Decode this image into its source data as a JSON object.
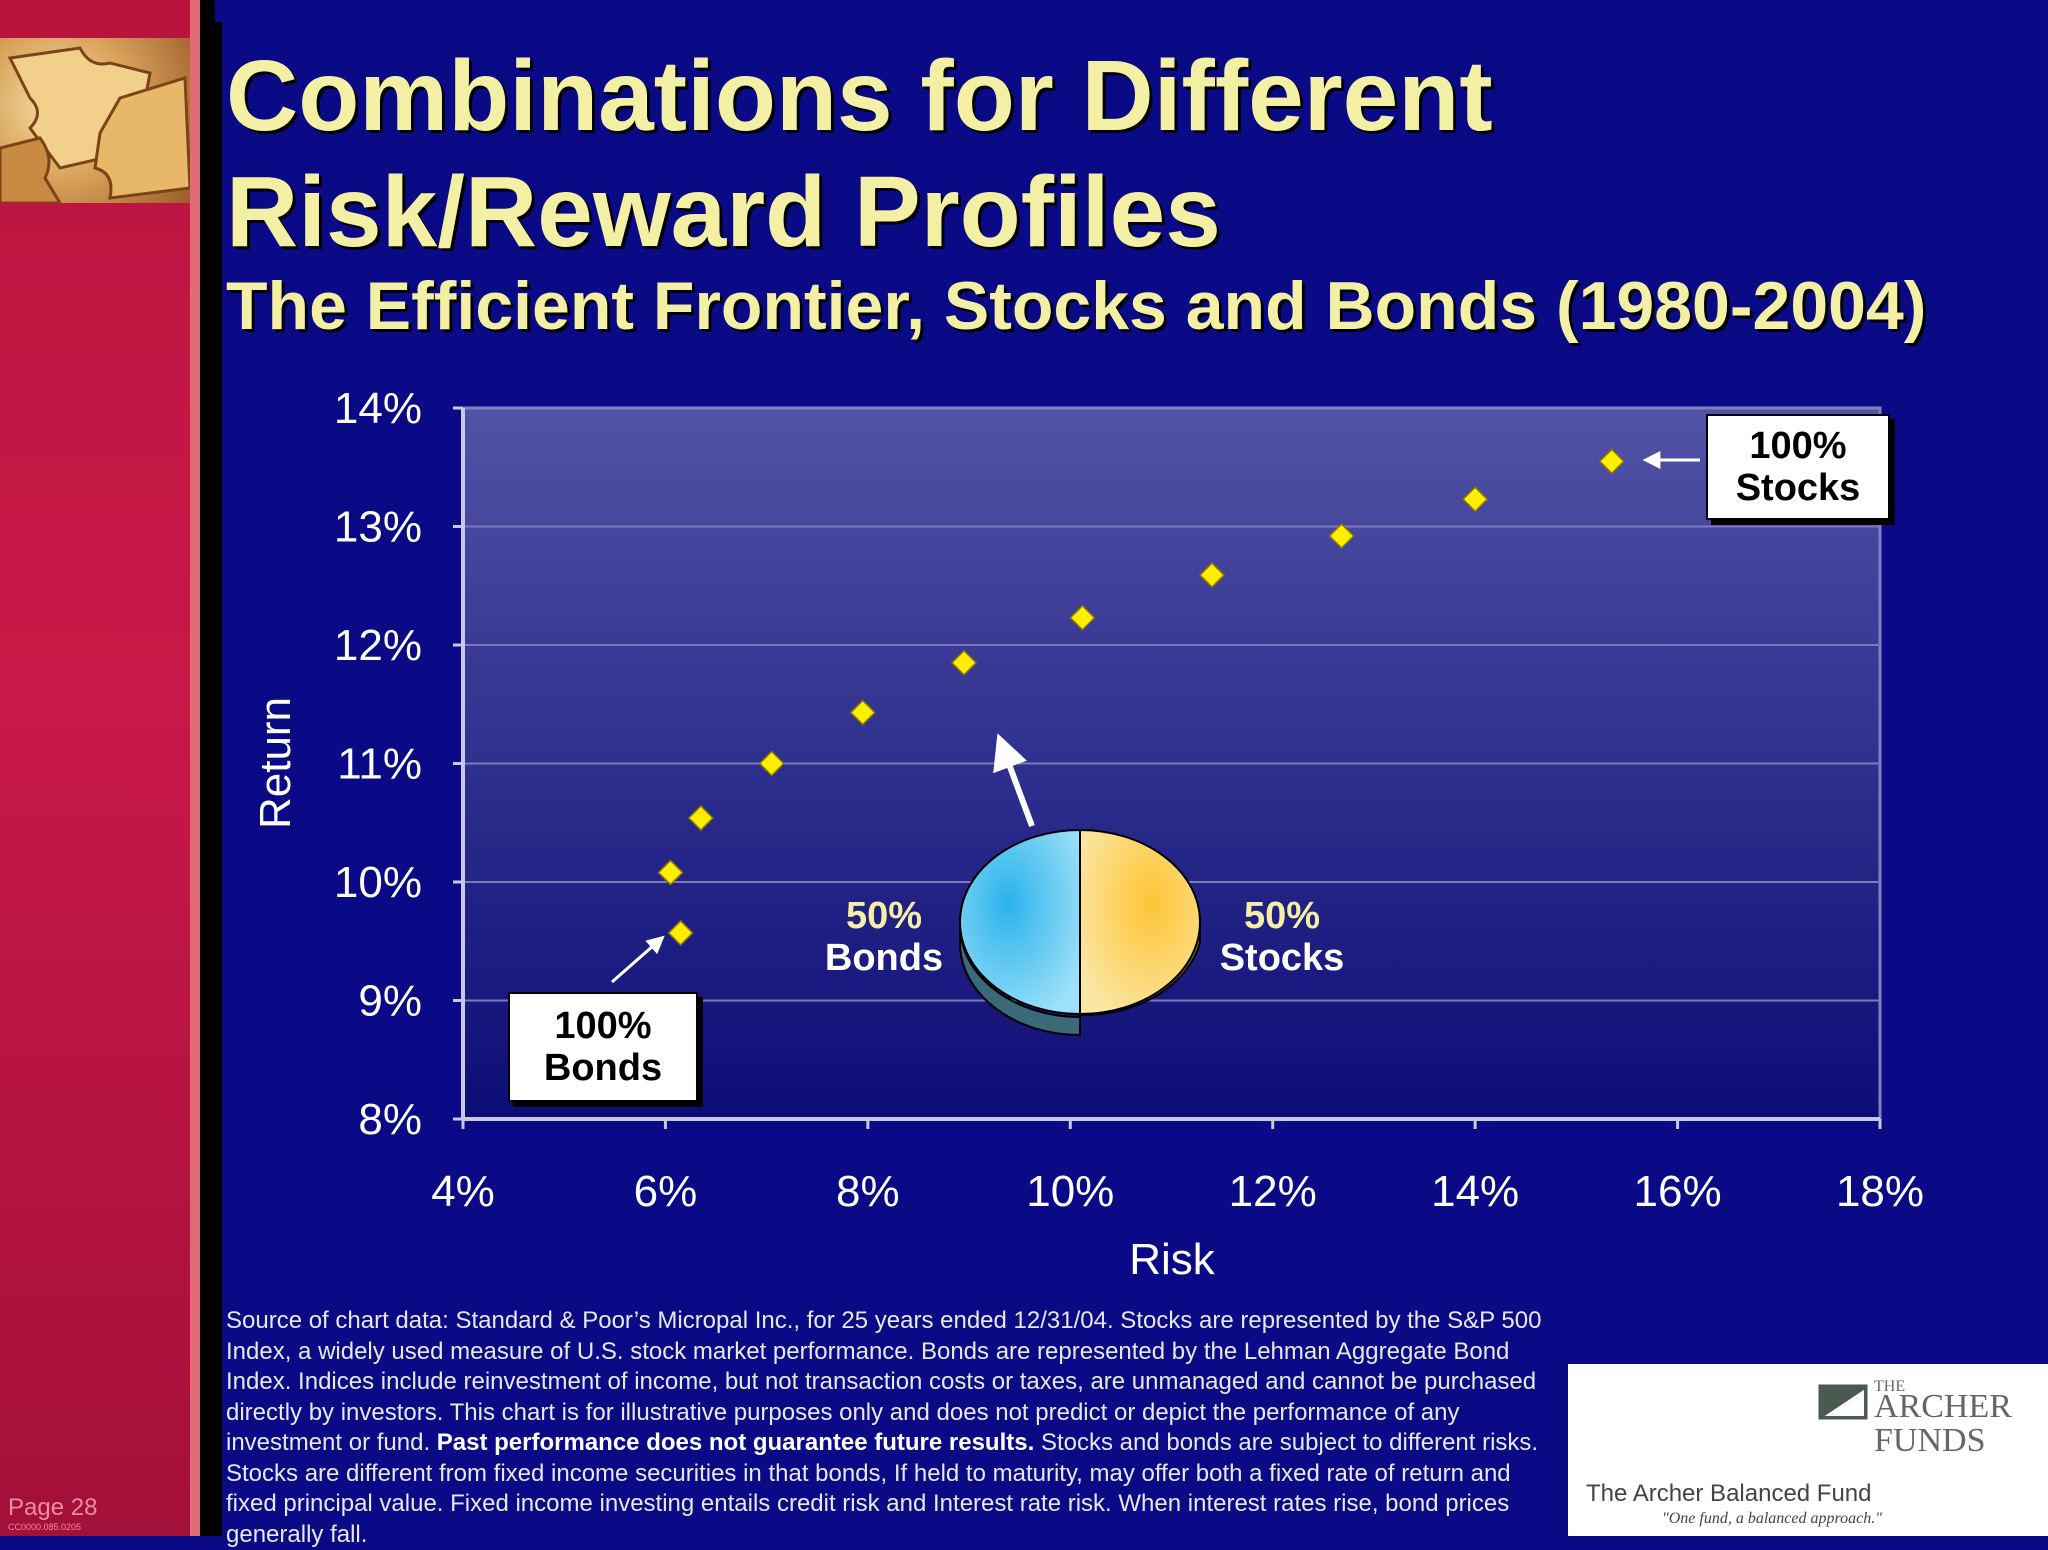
{
  "header": {
    "title_line1": "Combinations for Different",
    "title_line2": "Risk/Reward Profiles",
    "subtitle": "The Efficient Frontier, Stocks and Bonds (1980-2004)"
  },
  "chart_data": {
    "type": "scatter",
    "title": "",
    "xlabel": "Risk",
    "ylabel": "Return",
    "xlim": [
      4,
      18
    ],
    "ylim": [
      8,
      14
    ],
    "x_ticks": [
      "4%",
      "6%",
      "8%",
      "10%",
      "12%",
      "14%",
      "16%",
      "18%"
    ],
    "y_ticks": [
      "8%",
      "9%",
      "10%",
      "11%",
      "12%",
      "13%",
      "14%"
    ],
    "grid": true,
    "series": [
      {
        "name": "",
        "color": "#ffee00",
        "points": [
          {
            "x": 6.15,
            "y": 9.57
          },
          {
            "x": 6.05,
            "y": 10.08
          },
          {
            "x": 6.35,
            "y": 10.54
          },
          {
            "x": 7.05,
            "y": 11.0
          },
          {
            "x": 7.95,
            "y": 11.43
          },
          {
            "x": 8.95,
            "y": 11.85
          },
          {
            "x": 10.12,
            "y": 12.23
          },
          {
            "x": 11.4,
            "y": 12.59
          },
          {
            "x": 12.68,
            "y": 12.92
          },
          {
            "x": 14.0,
            "y": 13.23
          },
          {
            "x": 15.35,
            "y": 13.55
          }
        ]
      }
    ],
    "annotations": {
      "stocks_callout": [
        "100%",
        "Stocks"
      ],
      "bonds_callout": [
        "100%",
        "Bonds"
      ],
      "pie": {
        "bonds_pct": "50%",
        "bonds_label": "Bonds",
        "stocks_pct": "50%",
        "stocks_label": "Stocks",
        "bonds_color": "#4cc8f0",
        "stocks_color": "#f9d978"
      }
    }
  },
  "footnote": {
    "text_before_bold": "Source of chart data: Standard & Poor’s Micropal Inc., for 25 years ended 12/31/04. Stocks are represented by the S&P 500 Index, a widely used measure of U.S. stock market performance. Bonds are represented by the Lehman Aggregate Bond Index. Indices include reinvestment of income, but not transaction costs or taxes, are unmanaged and cannot be purchased directly by investors. This chart is for illustrative purposes only and does not predict or depict the performance of any investment or fund.",
    "bold": "Past performance does not guarantee future results.",
    "text_after_bold": "Stocks and bonds are subject to different risks. Stocks are different from fixed income securities in that bonds, If held to maturity, may offer both a fixed rate of return and fixed principal value. Fixed income investing entails credit risk and Interest rate risk. When interest rates rise, bond prices generally fall."
  },
  "logo": {
    "the": "THE",
    "name_line1": "ARCHER",
    "name_line2": "FUNDS",
    "fund_name": "The Archer Balanced Fund",
    "tagline": "\"One fund, a balanced approach.\""
  },
  "footer": {
    "page": "Page 28",
    "code": "CC0000.085.0205"
  },
  "colors": {
    "background": "#0a0a86",
    "title": "#f3f0a6",
    "sidebar": "#c81847"
  }
}
